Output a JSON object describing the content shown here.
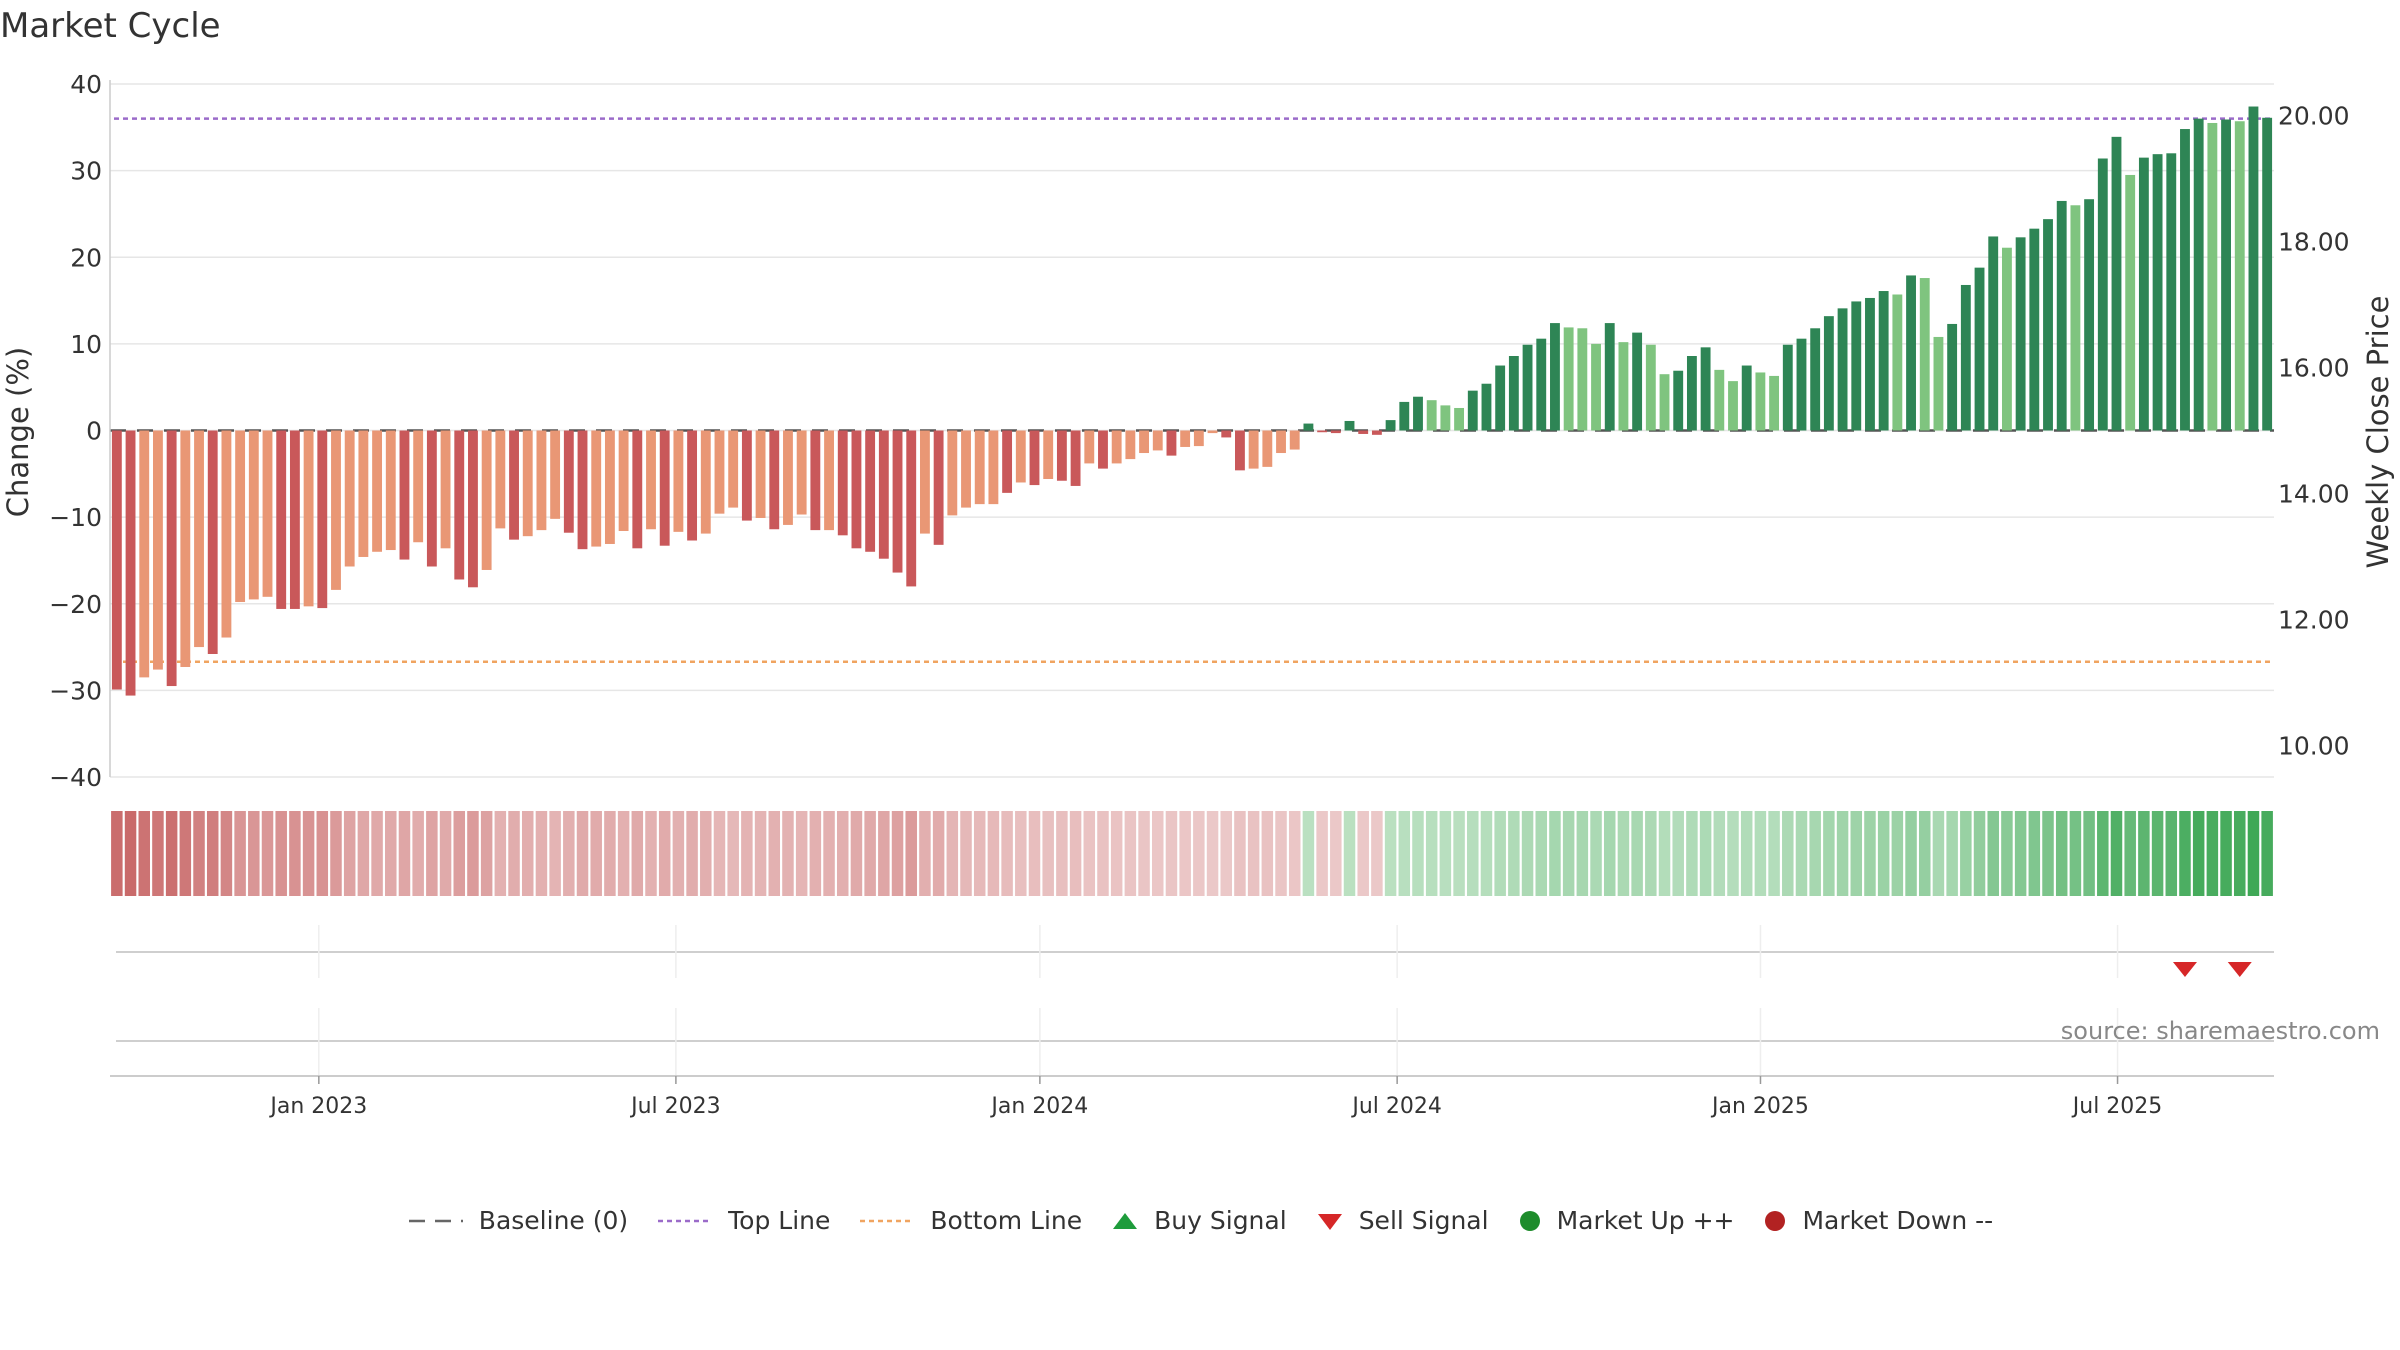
{
  "chart_data": {
    "type": "bar",
    "title": "Market Cycle",
    "ylabel": "Change (%)",
    "y2label": "Weekly Close Price",
    "ylim": [
      -40,
      40
    ],
    "y2lim": [
      9.5,
      20.5
    ],
    "yticks": [
      "40",
      "30",
      "20",
      "10",
      "0",
      "−10",
      "−20",
      "−30",
      "−40"
    ],
    "y2ticks": [
      "20.00",
      "18.00",
      "16.00",
      "14.00",
      "12.00",
      "10.00"
    ],
    "xticks": [
      "Jan 2023",
      "Jul 2023",
      "Jan 2024",
      "Jul 2024",
      "Jan 2025",
      "Jul 2025"
    ],
    "top_line": 36,
    "bottom_line": -26.7,
    "baseline": 0,
    "source": "source: sharemaestro.com",
    "grid": true,
    "legend_position": "bottom",
    "colors": {
      "down_dark": "#c9585a",
      "down_light": "#e99775",
      "up_dark": "#2e8555",
      "up_light": "#7fc47f",
      "top_line": "#9b6bc9",
      "bottom_line": "#f0a460",
      "buy": "#1e9c3c",
      "sell": "#d62728",
      "market_up": "#1e8c2c",
      "market_down": "#b22222"
    },
    "series": {
      "change": [
        -29.9,
        -30.6,
        -28.5,
        -27.6,
        -29.5,
        -27.3,
        -25.0,
        -25.8,
        -23.9,
        -19.8,
        -19.5,
        -19.2,
        -20.6,
        -20.6,
        -20.3,
        -20.5,
        -18.4,
        -15.7,
        -14.6,
        -14.0,
        -13.8,
        -14.9,
        -12.9,
        -15.7,
        -13.6,
        -17.2,
        -18.1,
        -16.1,
        -11.3,
        -12.6,
        -12.2,
        -11.5,
        -10.2,
        -11.8,
        -13.7,
        -13.4,
        -13.1,
        -11.6,
        -13.6,
        -11.4,
        -13.3,
        -11.7,
        -12.7,
        -11.9,
        -9.6,
        -8.9,
        -10.4,
        -10.1,
        -11.4,
        -10.9,
        -9.7,
        -11.5,
        -11.5,
        -12.1,
        -13.6,
        -14.0,
        -14.8,
        -16.4,
        -18.0,
        -11.9,
        -13.2,
        -9.8,
        -8.9,
        -8.5,
        -8.5,
        -7.2,
        -6.0,
        -6.3,
        -5.6,
        -5.8,
        -6.4,
        -3.8,
        -4.4,
        -3.8,
        -3.3,
        -2.6,
        -2.3,
        -2.9,
        -1.9,
        -1.8,
        -0.3,
        -0.8,
        -4.6,
        -4.4,
        -4.2,
        -2.6,
        -2.2,
        0.8,
        -0.2,
        -0.3,
        1.1,
        -0.4,
        -0.5,
        1.2,
        3.3,
        3.9,
        3.5,
        2.9,
        2.6,
        4.6,
        5.4,
        7.5,
        8.6,
        9.9,
        10.6,
        12.4,
        11.9,
        11.8,
        10.0,
        12.4,
        10.2,
        11.3,
        9.9,
        6.5,
        6.9,
        8.6,
        9.6,
        7.0,
        5.7,
        7.5,
        6.7,
        6.3,
        9.9,
        10.6,
        11.8,
        13.2,
        14.1,
        14.9,
        15.3,
        16.1,
        15.7,
        17.9,
        17.6,
        10.8,
        12.3,
        16.8,
        18.8,
        22.4,
        21.1,
        22.3,
        23.3,
        24.4,
        26.5,
        26.0,
        26.7,
        31.4,
        33.9,
        29.5,
        31.5,
        31.9,
        32.0,
        34.8,
        36.0,
        35.5,
        35.9,
        35.7,
        37.4,
        36.1
      ],
      "bar_shade": [
        "d",
        "d",
        "l",
        "l",
        "d",
        "l",
        "l",
        "d",
        "l",
        "l",
        "l",
        "l",
        "d",
        "d",
        "l",
        "d",
        "l",
        "l",
        "l",
        "l",
        "l",
        "d",
        "l",
        "d",
        "l",
        "d",
        "d",
        "l",
        "l",
        "d",
        "l",
        "l",
        "l",
        "d",
        "d",
        "l",
        "l",
        "l",
        "d",
        "l",
        "d",
        "l",
        "d",
        "l",
        "l",
        "l",
        "d",
        "l",
        "d",
        "l",
        "l",
        "d",
        "l",
        "d",
        "d",
        "d",
        "d",
        "d",
        "d",
        "l",
        "d",
        "l",
        "l",
        "l",
        "l",
        "d",
        "l",
        "d",
        "l",
        "d",
        "d",
        "l",
        "d",
        "l",
        "l",
        "l",
        "l",
        "d",
        "l",
        "l",
        "l",
        "d",
        "d",
        "l",
        "l",
        "l",
        "l",
        "d",
        "d",
        "d",
        "d",
        "d",
        "d",
        "d",
        "d",
        "d",
        "l",
        "l",
        "l",
        "d",
        "d",
        "d",
        "d",
        "d",
        "d",
        "d",
        "l",
        "l",
        "l",
        "d",
        "l",
        "d",
        "l",
        "l",
        "d",
        "d",
        "d",
        "l",
        "l",
        "d",
        "l",
        "l",
        "d",
        "d",
        "d",
        "d",
        "d",
        "d",
        "d",
        "d",
        "l",
        "d",
        "l",
        "l",
        "d",
        "d",
        "d",
        "d",
        "l",
        "d",
        "d",
        "d",
        "d",
        "l",
        "d",
        "d",
        "d",
        "l",
        "d",
        "d",
        "d",
        "d",
        "d",
        "l",
        "d",
        "l",
        "d",
        "d"
      ],
      "sell_signals": [
        151,
        155
      ]
    }
  },
  "legend": {
    "baseline": "Baseline (0)",
    "top_line": "Top Line",
    "bottom_line": "Bottom Line",
    "buy_signal": "Buy Signal",
    "sell_signal": "Sell Signal",
    "market_up": "Market Up ++",
    "market_down": "Market Down --"
  }
}
